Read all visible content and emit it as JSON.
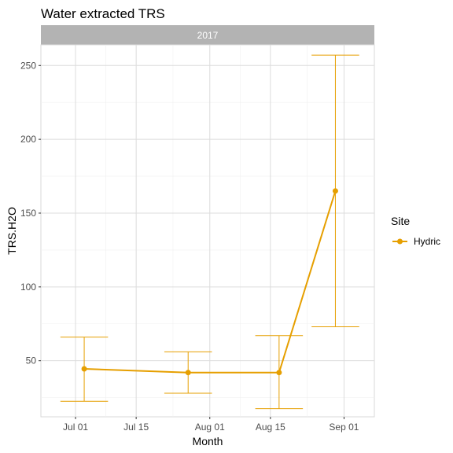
{
  "chart_data": {
    "type": "line",
    "title": "Water extracted TRS",
    "facet_label": "2017",
    "xlabel": "Month",
    "ylabel": "TRS.H2O",
    "x_ticks": [
      "Jul 01",
      "Jul 15",
      "Aug 01",
      "Aug 15",
      "Sep 01"
    ],
    "x_tick_dates": [
      "2017-07-01",
      "2017-07-15",
      "2017-08-01",
      "2017-08-15",
      "2017-09-01"
    ],
    "xlim": [
      "2017-06-23",
      "2017-09-08"
    ],
    "y_ticks": [
      50,
      100,
      150,
      200,
      250
    ],
    "ylim": [
      12,
      264
    ],
    "grid": true,
    "legend": {
      "title": "Site",
      "position": "right"
    },
    "series": [
      {
        "name": "Hydric",
        "color": "#E69F00",
        "points": [
          {
            "x": "2017-07-03",
            "y": 44.5,
            "ymin": 22.5,
            "ymax": 66
          },
          {
            "x": "2017-07-27",
            "y": 42,
            "ymin": 28,
            "ymax": 56
          },
          {
            "x": "2017-08-17",
            "y": 42,
            "ymin": 17.5,
            "ymax": 67
          },
          {
            "x": "2017-08-30",
            "y": 165,
            "ymin": 73,
            "ymax": 257
          }
        ]
      }
    ]
  }
}
